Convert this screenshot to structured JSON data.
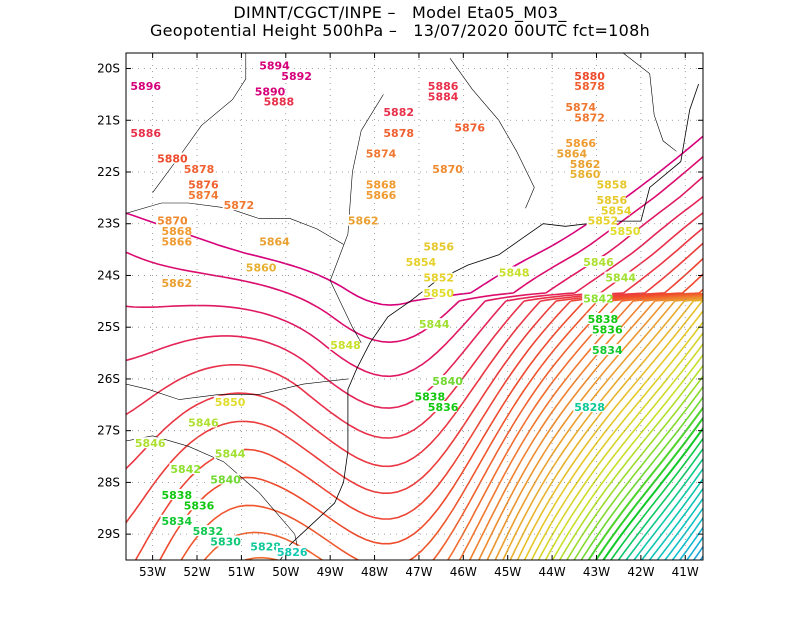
{
  "header": {
    "line1": "DIMNT/CGCT/INPE –   Model Eta05_M03_",
    "line2": "Geopotential Height 500hPa –   13/07/2020 00UTC fct=108h"
  },
  "map": {
    "variable": "Geopotential Height 500hPa",
    "lon_range": [
      -53.6,
      -40.6
    ],
    "lat_range": [
      -29.5,
      -19.7
    ],
    "lat_ticks": [
      "20S",
      "21S",
      "22S",
      "23S",
      "24S",
      "25S",
      "26S",
      "27S",
      "28S",
      "29S"
    ],
    "lon_ticks": [
      "53W",
      "52W",
      "51W",
      "50W",
      "49W",
      "48W",
      "47W",
      "46W",
      "45W",
      "44W",
      "43W",
      "42W",
      "41W"
    ],
    "contour_interval": 2,
    "contour_min": 5770,
    "contour_max": 5896,
    "contour_labels": [
      {
        "text": "5896",
        "lon": -53.5,
        "lat": -20.4,
        "color": "#d6007a"
      },
      {
        "text": "5894",
        "lon": -50.6,
        "lat": -20.0,
        "color": "#d6007a"
      },
      {
        "text": "5892",
        "lon": -50.1,
        "lat": -20.2,
        "color": "#d6007a"
      },
      {
        "text": "5890",
        "lon": -50.7,
        "lat": -20.5,
        "color": "#d6007a"
      },
      {
        "text": "5888",
        "lon": -50.5,
        "lat": -20.7,
        "color": "#e8304a"
      },
      {
        "text": "5886",
        "lon": -53.5,
        "lat": -21.3,
        "color": "#e8304a"
      },
      {
        "text": "5886",
        "lon": -46.8,
        "lat": -20.4,
        "color": "#e8304a"
      },
      {
        "text": "5884",
        "lon": -46.8,
        "lat": -20.6,
        "color": "#e8304a"
      },
      {
        "text": "5882",
        "lon": -47.8,
        "lat": -20.9,
        "color": "#e8304a"
      },
      {
        "text": "5880",
        "lon": -52.9,
        "lat": -21.8,
        "color": "#ee4a2c"
      },
      {
        "text": "5880",
        "lon": -43.5,
        "lat": -20.2,
        "color": "#ee4a2c"
      },
      {
        "text": "5878",
        "lon": -52.3,
        "lat": -22.0,
        "color": "#f06030"
      },
      {
        "text": "5878",
        "lon": -47.8,
        "lat": -21.3,
        "color": "#f06030"
      },
      {
        "text": "5878",
        "lon": -43.5,
        "lat": -20.4,
        "color": "#f06030"
      },
      {
        "text": "5876",
        "lon": -52.2,
        "lat": -22.3,
        "color": "#f06030"
      },
      {
        "text": "5876",
        "lon": -46.2,
        "lat": -21.2,
        "color": "#f06030"
      },
      {
        "text": "5874",
        "lon": -52.2,
        "lat": -22.5,
        "color": "#f07830"
      },
      {
        "text": "5874",
        "lon": -48.2,
        "lat": -21.7,
        "color": "#f07830"
      },
      {
        "text": "5874",
        "lon": -43.7,
        "lat": -20.8,
        "color": "#f07830"
      },
      {
        "text": "5872",
        "lon": -51.4,
        "lat": -22.7,
        "color": "#f07830"
      },
      {
        "text": "5872",
        "lon": -43.5,
        "lat": -21.0,
        "color": "#f07830"
      },
      {
        "text": "5870",
        "lon": -46.7,
        "lat": -22.0,
        "color": "#f08a30"
      },
      {
        "text": "5870",
        "lon": -52.9,
        "lat": -23.0,
        "color": "#f08a30"
      },
      {
        "text": "5868",
        "lon": -52.8,
        "lat": -23.2,
        "color": "#f09a30"
      },
      {
        "text": "5868",
        "lon": -48.2,
        "lat": -22.3,
        "color": "#f09a30"
      },
      {
        "text": "5866",
        "lon": -48.2,
        "lat": -22.5,
        "color": "#f09a30"
      },
      {
        "text": "5866",
        "lon": -52.8,
        "lat": -23.4,
        "color": "#f09a30"
      },
      {
        "text": "5866",
        "lon": -43.7,
        "lat": -21.5,
        "color": "#f09a30"
      },
      {
        "text": "5864",
        "lon": -43.9,
        "lat": -21.7,
        "color": "#eaa030"
      },
      {
        "text": "5864",
        "lon": -50.6,
        "lat": -23.4,
        "color": "#eaa030"
      },
      {
        "text": "5862",
        "lon": -48.6,
        "lat": -23.0,
        "color": "#eaa030"
      },
      {
        "text": "5862",
        "lon": -52.8,
        "lat": -24.2,
        "color": "#eaa030"
      },
      {
        "text": "5862",
        "lon": -43.6,
        "lat": -21.9,
        "color": "#eaa030"
      },
      {
        "text": "5860",
        "lon": -50.9,
        "lat": -23.9,
        "color": "#e8b030"
      },
      {
        "text": "5860",
        "lon": -43.6,
        "lat": -22.1,
        "color": "#e8b030"
      },
      {
        "text": "5858",
        "lon": -43.0,
        "lat": -22.3,
        "color": "#e6c82a"
      },
      {
        "text": "5856",
        "lon": -46.9,
        "lat": -23.5,
        "color": "#e6c82a"
      },
      {
        "text": "5856",
        "lon": -43.0,
        "lat": -22.6,
        "color": "#e6c82a"
      },
      {
        "text": "5854",
        "lon": -47.3,
        "lat": -23.8,
        "color": "#e6d02a"
      },
      {
        "text": "5854",
        "lon": -42.9,
        "lat": -22.8,
        "color": "#e6d02a"
      },
      {
        "text": "5852",
        "lon": -46.9,
        "lat": -24.1,
        "color": "#e6d02a"
      },
      {
        "text": "5852",
        "lon": -43.2,
        "lat": -23.0,
        "color": "#e6d02a"
      },
      {
        "text": "5850",
        "lon": -46.9,
        "lat": -24.4,
        "color": "#e0dc2a"
      },
      {
        "text": "5850",
        "lon": -42.7,
        "lat": -23.2,
        "color": "#e0dc2a"
      },
      {
        "text": "5850",
        "lon": -51.6,
        "lat": -26.5,
        "color": "#e0dc2a"
      },
      {
        "text": "5848",
        "lon": -45.2,
        "lat": -24.0,
        "color": "#c8e02a"
      },
      {
        "text": "5848",
        "lon": -49.0,
        "lat": -25.4,
        "color": "#c8e02a"
      },
      {
        "text": "5846",
        "lon": -43.3,
        "lat": -23.8,
        "color": "#aee030"
      },
      {
        "text": "5846",
        "lon": -52.2,
        "lat": -26.9,
        "color": "#aee030"
      },
      {
        "text": "5846",
        "lon": -53.4,
        "lat": -27.3,
        "color": "#aee030"
      },
      {
        "text": "5844",
        "lon": -42.8,
        "lat": -24.1,
        "color": "#a0e030"
      },
      {
        "text": "5844",
        "lon": -47.0,
        "lat": -25.0,
        "color": "#a0e030"
      },
      {
        "text": "5844",
        "lon": -51.6,
        "lat": -27.5,
        "color": "#a0e030"
      },
      {
        "text": "5842",
        "lon": -43.3,
        "lat": -24.5,
        "color": "#8ee030"
      },
      {
        "text": "5842",
        "lon": -52.6,
        "lat": -27.8,
        "color": "#8ee030"
      },
      {
        "text": "5840",
        "lon": -46.7,
        "lat": -26.1,
        "color": "#70d830"
      },
      {
        "text": "5840",
        "lon": -51.7,
        "lat": -28.0,
        "color": "#70d830"
      },
      {
        "text": "5838",
        "lon": -43.2,
        "lat": -24.9,
        "color": "#10c810"
      },
      {
        "text": "5838",
        "lon": -47.1,
        "lat": -26.4,
        "color": "#10c810"
      },
      {
        "text": "5838",
        "lon": -52.8,
        "lat": -28.3,
        "color": "#10c810"
      },
      {
        "text": "5836",
        "lon": -43.1,
        "lat": -25.1,
        "color": "#10c810"
      },
      {
        "text": "5836",
        "lon": -46.8,
        "lat": -26.6,
        "color": "#10c810"
      },
      {
        "text": "5836",
        "lon": -52.3,
        "lat": -28.5,
        "color": "#10c810"
      },
      {
        "text": "5834",
        "lon": -43.1,
        "lat": -25.5,
        "color": "#10c830"
      },
      {
        "text": "5834",
        "lon": -52.8,
        "lat": -28.8,
        "color": "#10c830"
      },
      {
        "text": "5832",
        "lon": -52.1,
        "lat": -29.0,
        "color": "#10c850"
      },
      {
        "text": "5830",
        "lon": -51.7,
        "lat": -29.2,
        "color": "#10c878"
      },
      {
        "text": "5828",
        "lon": -43.5,
        "lat": -26.6,
        "color": "#10c898"
      },
      {
        "text": "5828",
        "lon": -50.8,
        "lat": -29.3,
        "color": "#10c898"
      },
      {
        "text": "5826",
        "lon": -50.2,
        "lat": -29.4,
        "color": "#10c8b0"
      }
    ]
  }
}
